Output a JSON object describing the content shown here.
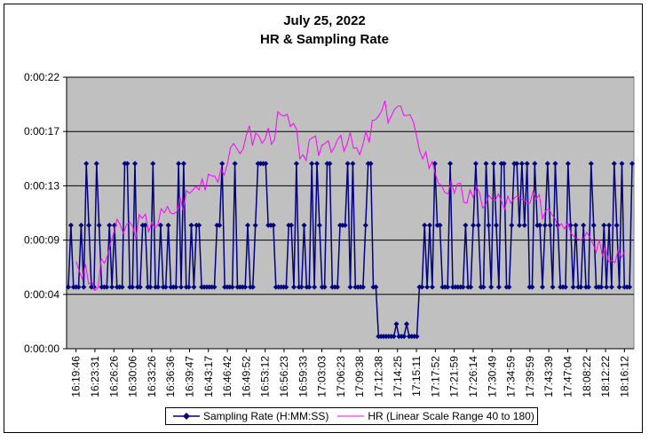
{
  "chart_data": {
    "type": "line",
    "title": "July 25, 2022",
    "subtitle": "HR & Sampling Rate",
    "y_ticks": [
      "0:00:00",
      "0:00:04",
      "0:00:09",
      "0:00:13",
      "0:00:17",
      "0:00:22"
    ],
    "x_ticks": [
      "16:19:46",
      "16:23:31",
      "16:26:26",
      "16:30:06",
      "16:33:26",
      "16:36:36",
      "16:39:47",
      "16:43:17",
      "16:46:42",
      "16:49:52",
      "16:53:12",
      "16:56:23",
      "16:59:33",
      "17:03:03",
      "17:06:23",
      "17:09:38",
      "17:12:38",
      "17:14:25",
      "17:15:11",
      "17:17:52",
      "17:21:59",
      "17:26:14",
      "17:30:49",
      "17:34:59",
      "17:39:59",
      "17:43:39",
      "17:47:04",
      "18:08:22",
      "18:12:22",
      "18:16:12"
    ],
    "ylim_seconds": [
      0,
      22
    ],
    "grid": true,
    "legend_position": "bottom",
    "series": [
      {
        "name": "Sampling Rate (H:MM:SS)",
        "color": "#000080",
        "marker": "diamond",
        "sampling_levels_seconds": [
          1,
          2,
          5,
          10,
          15
        ],
        "description_of_values": "alternates mostly between 5 s, 10 s and 15 s; drops to 1–2 s between about 17:12:38 and 17:15:11"
      },
      {
        "name": "HR (Linear Scale Range 40 to 180)",
        "color": "#ff00ff",
        "marker": "none",
        "hr_scale": [
          40,
          180
        ],
        "hr_keypoints": [
          [
            "16:19:46",
            85
          ],
          [
            "16:23:31",
            70
          ],
          [
            "16:26:26",
            100
          ],
          [
            "16:30:06",
            103
          ],
          [
            "16:33:26",
            105
          ],
          [
            "16:36:36",
            110
          ],
          [
            "16:39:47",
            120
          ],
          [
            "16:43:17",
            130
          ],
          [
            "16:46:42",
            135
          ],
          [
            "16:49:52",
            150
          ],
          [
            "16:53:12",
            148
          ],
          [
            "16:56:23",
            160
          ],
          [
            "16:59:33",
            140
          ],
          [
            "17:03:03",
            145
          ],
          [
            "17:06:23",
            150
          ],
          [
            "17:09:38",
            140
          ],
          [
            "17:12:38",
            160
          ],
          [
            "17:14:25",
            165
          ],
          [
            "17:15:11",
            150
          ],
          [
            "17:17:52",
            130
          ],
          [
            "17:21:59",
            120
          ],
          [
            "17:26:14",
            118
          ],
          [
            "17:30:49",
            117
          ],
          [
            "17:34:59",
            115
          ],
          [
            "17:39:59",
            115
          ],
          [
            "17:43:39",
            112
          ],
          [
            "17:47:04",
            105
          ],
          [
            "18:08:22",
            100
          ],
          [
            "18:12:22",
            92
          ],
          [
            "18:16:12",
            90
          ]
        ]
      }
    ]
  }
}
